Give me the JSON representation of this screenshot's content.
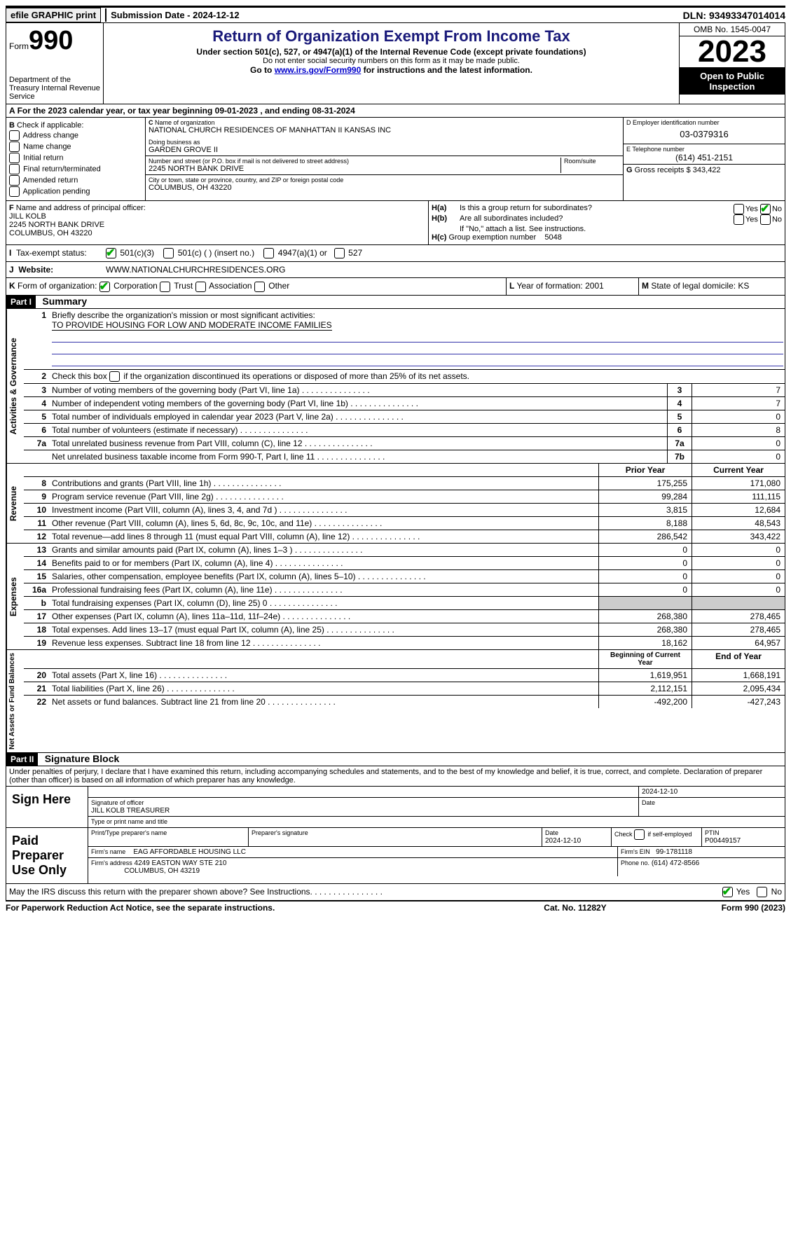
{
  "topbar": {
    "efile": "efile GRAPHIC print",
    "submission": "Submission Date - 2024-12-12",
    "dln": "DLN: 93493347014014"
  },
  "header": {
    "form_label": "Form",
    "form_num": "990",
    "dept": "Department of the Treasury Internal Revenue Service",
    "title": "Return of Organization Exempt From Income Tax",
    "sub1": "Under section 501(c), 527, or 4947(a)(1) of the Internal Revenue Code (except private foundations)",
    "sub2": "Do not enter social security numbers on this form as it may be made public.",
    "sub3_pre": "Go to ",
    "sub3_link": "www.irs.gov/Form990",
    "sub3_post": " for instructions and the latest information.",
    "omb": "OMB No. 1545-0047",
    "year": "2023",
    "open": "Open to Public Inspection"
  },
  "lineA": "For the 2023 calendar year, or tax year beginning 09-01-2023   , and ending 08-31-2024",
  "colB": {
    "title": "Check if applicable:",
    "items": [
      "Address change",
      "Name change",
      "Initial return",
      "Final return/terminated",
      "Amended return",
      "Application pending"
    ]
  },
  "colC": {
    "name_lbl": "Name of organization",
    "name": "NATIONAL CHURCH RESIDENCES OF MANHATTAN II KANSAS INC",
    "dba_lbl": "Doing business as",
    "dba": "GARDEN GROVE II",
    "addr_lbl": "Number and street (or P.O. box if mail is not delivered to street address)",
    "addr": "2245 NORTH BANK DRIVE",
    "room_lbl": "Room/suite",
    "city_lbl": "City or town, state or province, country, and ZIP or foreign postal code",
    "city": "COLUMBUS, OH  43220"
  },
  "colD": {
    "lbl": "D Employer identification number",
    "val": "03-0379316"
  },
  "colE": {
    "lbl": "E Telephone number",
    "val": "(614) 451-2151"
  },
  "colG": {
    "lbl": "G",
    "txt": "Gross receipts $",
    "val": "343,422"
  },
  "colF": {
    "lbl": "F",
    "txt": "Name and address of principal officer:",
    "name": "JILL KOLB",
    "addr1": "2245 NORTH BANK DRIVE",
    "addr2": "COLUMBUS, OH  43220"
  },
  "colH": {
    "a": "Is this a group return for subordinates?",
    "b": "Are all subordinates included?",
    "b_note": "If \"No,\" attach a list. See instructions.",
    "c_lbl": "Group exemption number",
    "c_val": "5048"
  },
  "taxI": {
    "lbl": "Tax-exempt status:",
    "opt1": "501(c)(3)",
    "opt2": "501(c) (  ) (insert no.)",
    "opt3": "4947(a)(1) or",
    "opt4": "527"
  },
  "taxJ": {
    "lbl": "Website:",
    "val": "WWW.NATIONALCHURCHRESIDENCES.ORG"
  },
  "taxK": {
    "lbl": "Form of organization:",
    "opts": [
      "Corporation",
      "Trust",
      "Association",
      "Other"
    ]
  },
  "taxL": {
    "lbl": "Year of formation:",
    "val": "2001"
  },
  "taxM": {
    "lbl": "State of legal domicile:",
    "val": "KS"
  },
  "part1": {
    "hdr": "Part I",
    "title": "Summary",
    "mission_lbl": "Briefly describe the organization's mission or most significant activities:",
    "mission": "TO PROVIDE HOUSING FOR LOW AND MODERATE INCOME FAMILIES",
    "line2": "Check this box         if the organization discontinued its operations or disposed of more than 25% of its net assets.",
    "lines_gov": [
      {
        "n": "3",
        "d": "Number of voting members of the governing body (Part VI, line 1a)",
        "b": "3",
        "v": "7"
      },
      {
        "n": "4",
        "d": "Number of independent voting members of the governing body (Part VI, line 1b)",
        "b": "4",
        "v": "7"
      },
      {
        "n": "5",
        "d": "Total number of individuals employed in calendar year 2023 (Part V, line 2a)",
        "b": "5",
        "v": "0"
      },
      {
        "n": "6",
        "d": "Total number of volunteers (estimate if necessary)",
        "b": "6",
        "v": "8"
      },
      {
        "n": "7a",
        "d": "Total unrelated business revenue from Part VIII, column (C), line 12",
        "b": "7a",
        "v": "0"
      },
      {
        "n": "",
        "d": "Net unrelated business taxable income from Form 990-T, Part I, line 11",
        "b": "7b",
        "v": "0"
      }
    ],
    "hdr_prior": "Prior Year",
    "hdr_curr": "Current Year",
    "lines_rev": [
      {
        "n": "8",
        "d": "Contributions and grants (Part VIII, line 1h)",
        "p": "175,255",
        "c": "171,080"
      },
      {
        "n": "9",
        "d": "Program service revenue (Part VIII, line 2g)",
        "p": "99,284",
        "c": "111,115"
      },
      {
        "n": "10",
        "d": "Investment income (Part VIII, column (A), lines 3, 4, and 7d )",
        "p": "3,815",
        "c": "12,684"
      },
      {
        "n": "11",
        "d": "Other revenue (Part VIII, column (A), lines 5, 6d, 8c, 9c, 10c, and 11e)",
        "p": "8,188",
        "c": "48,543"
      },
      {
        "n": "12",
        "d": "Total revenue—add lines 8 through 11 (must equal Part VIII, column (A), line 12)",
        "p": "286,542",
        "c": "343,422"
      }
    ],
    "lines_exp": [
      {
        "n": "13",
        "d": "Grants and similar amounts paid (Part IX, column (A), lines 1–3 )",
        "p": "0",
        "c": "0"
      },
      {
        "n": "14",
        "d": "Benefits paid to or for members (Part IX, column (A), line 4)",
        "p": "0",
        "c": "0"
      },
      {
        "n": "15",
        "d": "Salaries, other compensation, employee benefits (Part IX, column (A), lines 5–10)",
        "p": "0",
        "c": "0"
      },
      {
        "n": "16a",
        "d": "Professional fundraising fees (Part IX, column (A), line 11e)",
        "p": "0",
        "c": "0"
      },
      {
        "n": "b",
        "d": "Total fundraising expenses (Part IX, column (D), line 25) 0",
        "p": "",
        "c": "",
        "gray": true
      },
      {
        "n": "17",
        "d": "Other expenses (Part IX, column (A), lines 11a–11d, 11f–24e)",
        "p": "268,380",
        "c": "278,465"
      },
      {
        "n": "18",
        "d": "Total expenses. Add lines 13–17 (must equal Part IX, column (A), line 25)",
        "p": "268,380",
        "c": "278,465"
      },
      {
        "n": "19",
        "d": "Revenue less expenses. Subtract line 18 from line 12",
        "p": "18,162",
        "c": "64,957"
      }
    ],
    "hdr_begin": "Beginning of Current Year",
    "hdr_end": "End of Year",
    "lines_net": [
      {
        "n": "20",
        "d": "Total assets (Part X, line 16)",
        "p": "1,619,951",
        "c": "1,668,191"
      },
      {
        "n": "21",
        "d": "Total liabilities (Part X, line 26)",
        "p": "2,112,151",
        "c": "2,095,434"
      },
      {
        "n": "22",
        "d": "Net assets or fund balances. Subtract line 21 from line 20",
        "p": "-492,200",
        "c": "-427,243"
      }
    ],
    "vlabels": {
      "gov": "Activities & Governance",
      "rev": "Revenue",
      "exp": "Expenses",
      "net": "Net Assets or Fund Balances"
    }
  },
  "part2": {
    "hdr": "Part II",
    "title": "Signature Block",
    "decl": "Under penalties of perjury, I declare that I have examined this return, including accompanying schedules and statements, and to the best of my knowledge and belief, it is true, correct, and complete. Declaration of preparer (other than officer) is based on all information of which preparer has any knowledge.",
    "sign_here": "Sign Here",
    "sig_officer_lbl": "Signature of officer",
    "sig_officer": "JILL KOLB  TREASURER",
    "sig_date_lbl": "Date",
    "sig_date": "2024-12-10",
    "sig_name_lbl": "Type or print name and title",
    "paid": "Paid Preparer Use Only",
    "prep_name_lbl": "Print/Type preparer's name",
    "prep_sig_lbl": "Preparer's signature",
    "prep_date_lbl": "Date",
    "prep_date": "2024-12-10",
    "prep_self": "Check         if self-employed",
    "ptin_lbl": "PTIN",
    "ptin": "P00449157",
    "firm_name_lbl": "Firm's name",
    "firm_name": "EAG AFFORDABLE HOUSING LLC",
    "firm_ein_lbl": "Firm's EIN",
    "firm_ein": "99-1781118",
    "firm_addr_lbl": "Firm's address",
    "firm_addr": "4249 EASTON WAY STE 210",
    "firm_city": "COLUMBUS, OH  43219",
    "firm_phone_lbl": "Phone no.",
    "firm_phone": "(614) 472-8566",
    "discuss": "May the IRS discuss this return with the preparer shown above? See Instructions."
  },
  "footer": {
    "left": "For Paperwork Reduction Act Notice, see the separate instructions.",
    "mid": "Cat. No. 11282Y",
    "right_pre": "Form ",
    "right_form": "990",
    "right_post": " (2023)"
  },
  "yesno": {
    "yes": "Yes",
    "no": "No"
  }
}
